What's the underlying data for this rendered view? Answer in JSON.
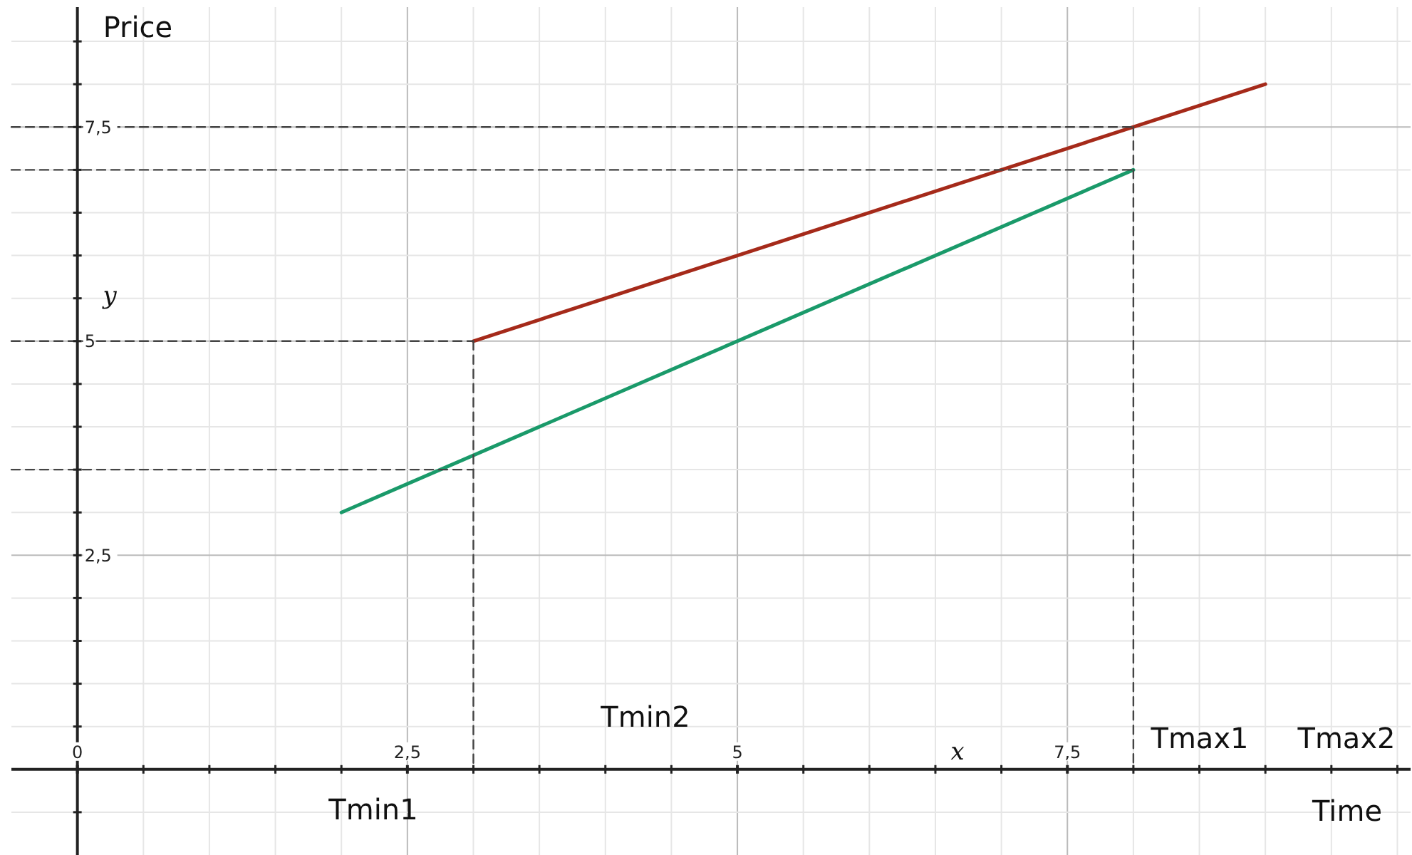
{
  "chart_data": {
    "type": "line",
    "xlabel": "Time",
    "ylabel": "Price",
    "xlim": [
      -0.5,
      10.1
    ],
    "ylim": [
      -1,
      8.9
    ],
    "xticks": [
      0,
      {
        "value": 0.5,
        "label": null
      },
      {
        "value": 1,
        "label": null
      },
      {
        "value": 1.5,
        "label": null
      },
      {
        "value": 2,
        "label": null
      },
      {
        "value": 2.5,
        "label": "2,5"
      },
      {
        "value": 3,
        "label": null
      },
      {
        "value": 3.5,
        "label": null
      },
      {
        "value": 4,
        "label": null
      },
      {
        "value": 4.5,
        "label": null
      },
      5,
      {
        "value": 5.5,
        "label": null
      },
      {
        "value": 6,
        "label": null
      },
      {
        "value": 6.5,
        "label": null
      },
      {
        "value": 7,
        "label": null
      },
      {
        "value": 7.5,
        "label": "7,5"
      },
      {
        "value": 8,
        "label": null
      },
      {
        "value": 8.5,
        "label": null
      },
      {
        "value": 9,
        "label": null
      },
      {
        "value": 9.5,
        "label": null
      },
      {
        "value": 10,
        "label": null
      }
    ],
    "yticks": [
      {
        "value": -0.5,
        "label": null
      },
      {
        "value": 0.5,
        "label": null
      },
      {
        "value": 1,
        "label": null
      },
      {
        "value": 1.5,
        "label": null
      },
      {
        "value": 2,
        "label": null
      },
      {
        "value": 2.5,
        "label": "2,5"
      },
      {
        "value": 3,
        "label": null
      },
      {
        "value": 3.5,
        "label": null
      },
      {
        "value": 4,
        "label": null
      },
      {
        "value": 4.5,
        "label": null
      },
      5,
      {
        "value": 5.5,
        "label": null
      },
      {
        "value": 6,
        "label": null
      },
      {
        "value": 6.5,
        "label": null
      },
      {
        "value": 7,
        "label": null
      },
      {
        "value": 7.5,
        "label": "7,5"
      },
      {
        "value": 8,
        "label": null
      },
      {
        "value": 8.5,
        "label": null
      }
    ],
    "grid": true,
    "marker": "none",
    "series": [
      {
        "color": "#a52a1a",
        "x": [
          3,
          9
        ],
        "values": [
          5,
          8
        ]
      },
      {
        "color": "#1a9a6a",
        "x": [
          2,
          8
        ],
        "values": [
          3,
          7
        ]
      },
      {
        "color": "#444444",
        "line_style": "dashed",
        "x": [
          -0.5,
          8
        ],
        "values": [
          7.5,
          7.5
        ]
      },
      {
        "color": "#444444",
        "line_style": "dashed",
        "x": [
          -0.5,
          8
        ],
        "values": [
          7,
          7
        ]
      },
      {
        "color": "#444444",
        "line_style": "dashed",
        "x": [
          -0.5,
          3
        ],
        "values": [
          5,
          5
        ]
      },
      {
        "color": "#444444",
        "line_style": "dashed",
        "x": [
          -0.5,
          3
        ],
        "values": [
          3.5,
          3.5
        ]
      },
      {
        "color": "#444444",
        "line_style": "dashed",
        "x": [
          3,
          3
        ],
        "values": [
          5,
          0
        ]
      },
      {
        "color": "#444444",
        "line_style": "dashed",
        "x": [
          8,
          8
        ],
        "values": [
          7.5,
          0
        ]
      }
    ],
    "annotations": [
      "Tmin1",
      "Tmin2",
      "Tmax1",
      "Tmax2",
      "x",
      "y"
    ]
  }
}
